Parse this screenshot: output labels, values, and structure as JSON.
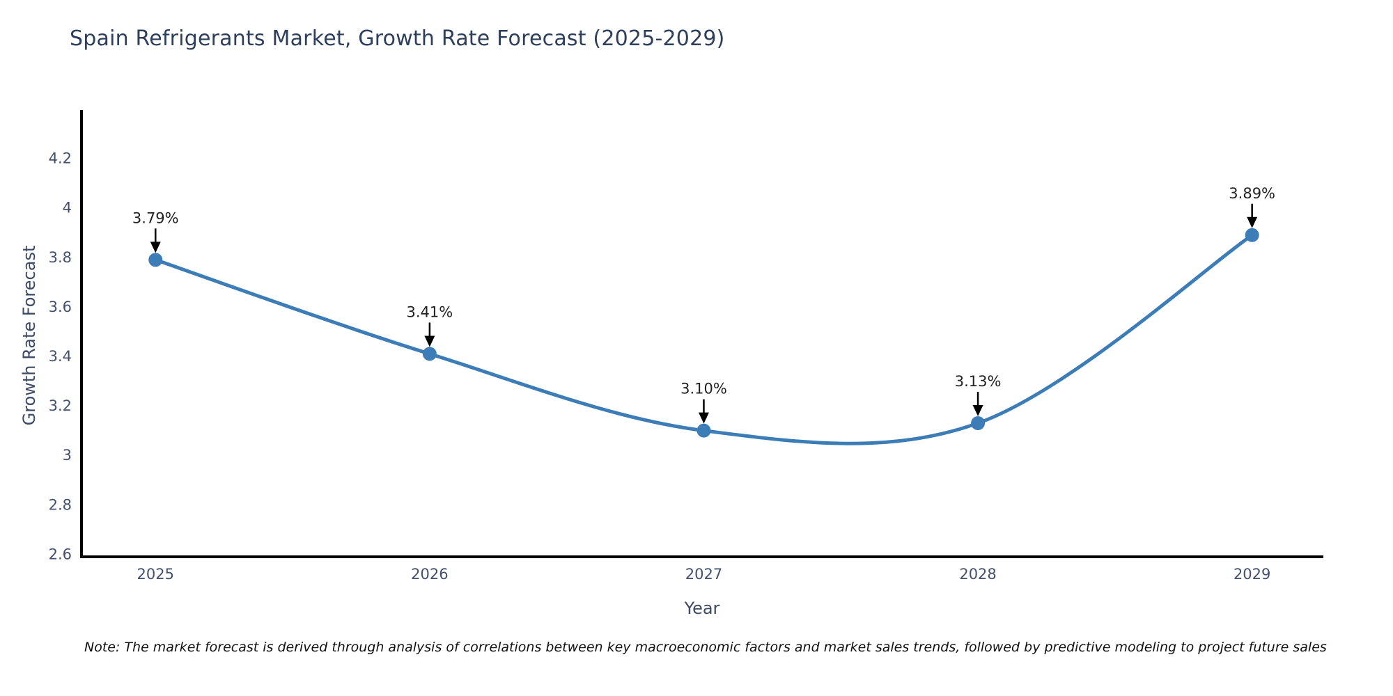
{
  "title": "Spain Refrigerants Market, Growth Rate Forecast (2025-2029)",
  "note": "Note: The market forecast is derived through analysis of correlations between key macroeconomic factors and market sales trends, followed by predictive modeling to project future sales",
  "chart_data": {
    "type": "line",
    "title": "Spain Refrigerants Market, Growth Rate Forecast (2025-2029)",
    "xlabel": "Year",
    "ylabel": "Growth Rate Forecast",
    "categories": [
      2025,
      2026,
      2027,
      2028,
      2029
    ],
    "values": [
      3.79,
      3.41,
      3.1,
      3.13,
      3.89
    ],
    "point_labels": [
      "3.79%",
      "3.41%",
      "3.10%",
      "3.13%",
      "3.89%"
    ],
    "x_tick_labels": [
      "2025",
      "2026",
      "2027",
      "2028",
      "2029"
    ],
    "y_ticks": {
      "values": [
        2.6,
        2.8,
        3.0,
        3.2,
        3.4,
        3.6,
        3.8,
        4.0,
        4.2
      ],
      "labels": [
        "2.6",
        "2.8",
        "3",
        "3.2",
        "3.4",
        "3.6",
        "3.8",
        "4",
        "4.2"
      ]
    },
    "xlim": [
      2024.73,
      2029.26
    ],
    "ylim": [
      2.59,
      4.39
    ],
    "grid": false,
    "legend": "none",
    "line_shape": "spline",
    "colors": {
      "line": "#3c7db8",
      "marker": "#3c7db8",
      "axis": "#000000",
      "tick_label": "#42516d",
      "annotation_text": "#222222",
      "annotation_arrow": "#000000",
      "background": "#ffffff"
    }
  }
}
